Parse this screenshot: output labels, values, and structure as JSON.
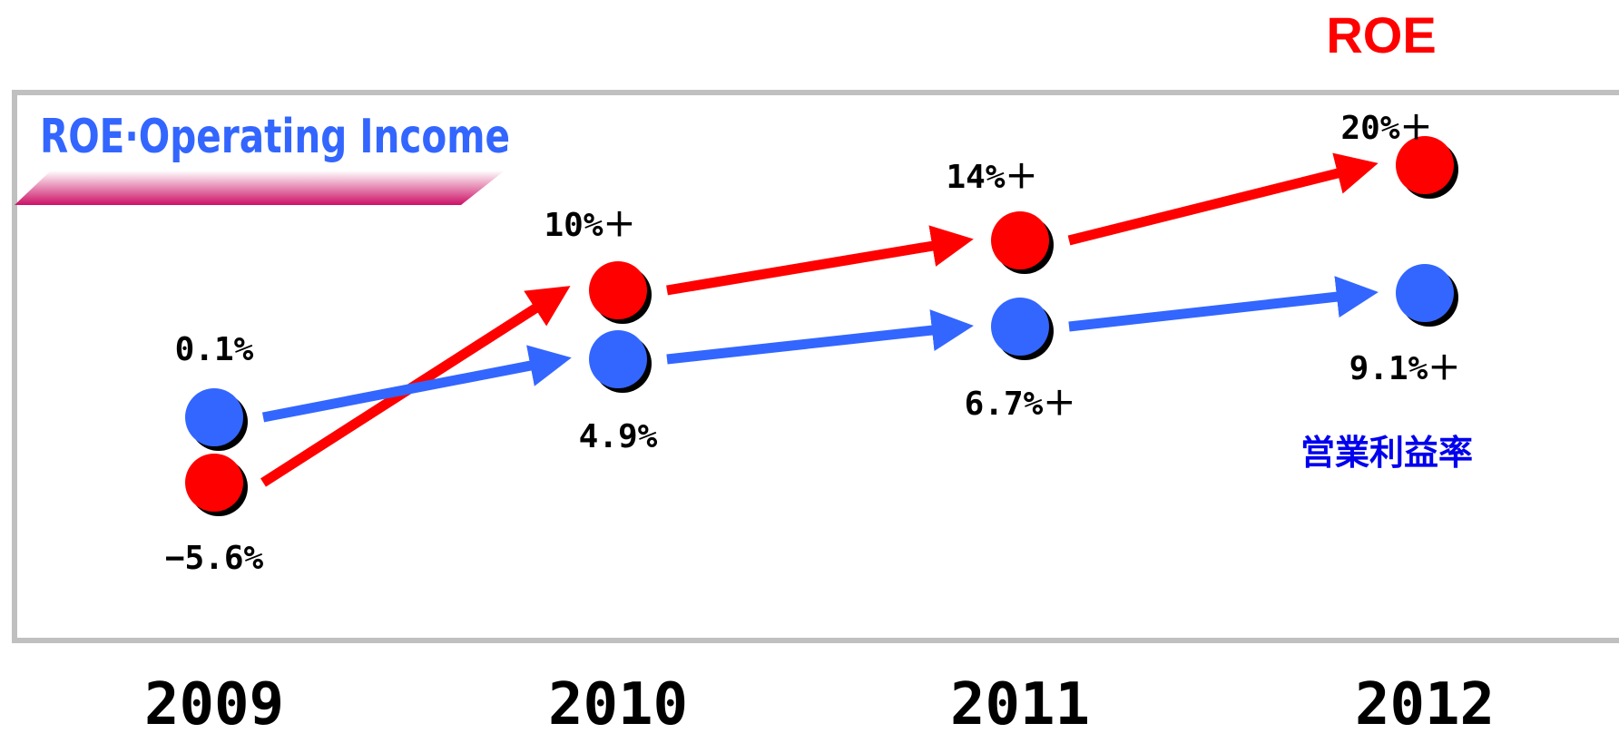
{
  "chart_data": {
    "type": "line",
    "title": "ROE·Operating Income",
    "categories": [
      "2009",
      "2010",
      "2011",
      "2012"
    ],
    "series": [
      {
        "name": "ROE",
        "color": "#ff0000",
        "values": [
          -5.6,
          10,
          14,
          20
        ],
        "labels": [
          "−5.6%",
          "10%＋",
          "14%＋",
          "20%＋"
        ]
      },
      {
        "name": "営業利益率",
        "color": "#3366ff",
        "values": [
          0.1,
          4.9,
          6.7,
          9.1
        ],
        "labels": [
          "0.1%",
          "4.9%",
          "6.7%＋",
          "9.1%＋"
        ]
      }
    ],
    "legend": "right",
    "grid": false
  },
  "colors": {
    "frame": "#c0c0c0",
    "title": "#3366ff",
    "banner_from": "#ffffff",
    "banner_to": "#cc1166"
  }
}
